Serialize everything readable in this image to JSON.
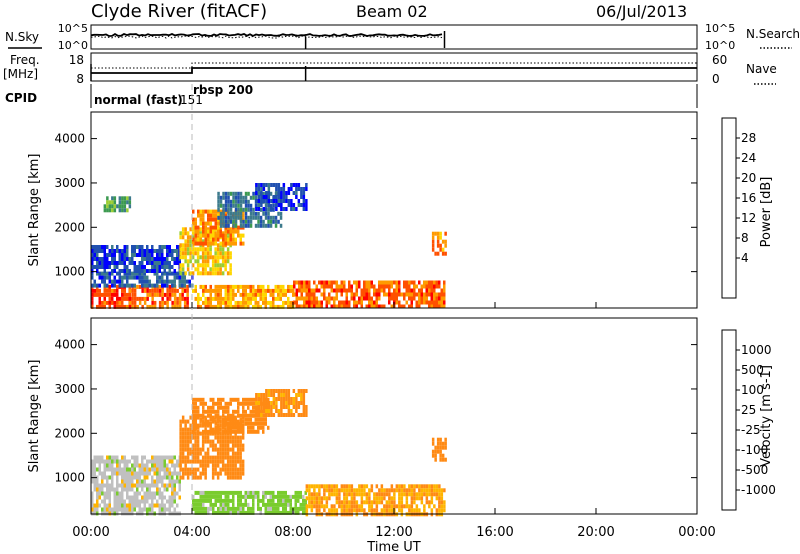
{
  "header": {
    "station": "Clyde River (fitACF)",
    "beam": "Beam 02",
    "date": "06/Jul/2013"
  },
  "top_panels": {
    "nsky_label": "N.Sky",
    "nsky_ticks": [
      "10^5",
      "10^0"
    ],
    "nsearch_label": "N.Search",
    "freq_label_1": "Freq.",
    "freq_label_2": "[MHz]",
    "freq_ticks": [
      "18",
      "8"
    ],
    "nave_label": "Nave",
    "nave_ticks": [
      "60",
      "0"
    ],
    "cpid_label": "CPID",
    "cpid_modes": [
      {
        "label": "normal (fast)",
        "id": "151",
        "start_hour": 0
      },
      {
        "label": "rbsp",
        "id": "200",
        "start_hour": 4
      }
    ]
  },
  "colors": {
    "power_scale": [
      "#0000ff",
      "#2050b0",
      "#3c7a8c",
      "#3c9a50",
      "#9acd32",
      "#ffd700",
      "#ff9a00",
      "#ff5000",
      "#ff0000"
    ],
    "velocity_scale": [
      "#ff0000",
      "#ff4a00",
      "#ff8a14",
      "#ffb400",
      "#c0c0c0",
      "#7acc2e",
      "#3c9a50",
      "#2a6ca4",
      "#1434c8"
    ]
  },
  "chart_data": [
    {
      "type": "heatmap",
      "panel": "power",
      "ylabel": "Slant Range [km]",
      "yticks": [
        1000,
        2000,
        3000,
        4000
      ],
      "ylim": [
        180,
        4600
      ],
      "xlim": [
        0,
        24
      ],
      "colorbar_label": "Power [dB]",
      "colorbar_ticks": [
        "28",
        "24",
        "20",
        "16",
        "12",
        "8",
        "4"
      ],
      "clim": [
        0,
        32
      ],
      "regions": [
        {
          "x": [
            0.0,
            1.5
          ],
          "y": [
            200,
            700
          ],
          "value": 28
        },
        {
          "x": [
            1.5,
            3.8
          ],
          "y": [
            200,
            700
          ],
          "value": 26
        },
        {
          "x": [
            0.0,
            4.0
          ],
          "y": [
            700,
            1000
          ],
          "value": 6
        },
        {
          "x": [
            0.0,
            3.5
          ],
          "y": [
            1000,
            1600
          ],
          "value": 5
        },
        {
          "x": [
            3.5,
            5.5
          ],
          "y": [
            1000,
            2000
          ],
          "value": 20
        },
        {
          "x": [
            4.0,
            6.0
          ],
          "y": [
            1600,
            2400
          ],
          "value": 24
        },
        {
          "x": [
            5.0,
            7.5
          ],
          "y": [
            2000,
            2800
          ],
          "value": 8
        },
        {
          "x": [
            6.5,
            8.5
          ],
          "y": [
            2400,
            3000
          ],
          "value": 4
        },
        {
          "x": [
            0.5,
            1.5
          ],
          "y": [
            2400,
            2700
          ],
          "value": 12
        },
        {
          "x": [
            4.0,
            8.0
          ],
          "y": [
            200,
            700
          ],
          "value": 22
        },
        {
          "x": [
            8.0,
            14.0
          ],
          "y": [
            200,
            800
          ],
          "value": 26
        },
        {
          "x": [
            13.5,
            14.0
          ],
          "y": [
            1400,
            1900
          ],
          "value": 24
        }
      ]
    },
    {
      "type": "heatmap",
      "panel": "velocity",
      "ylabel": "Slant Range [km]",
      "yticks": [
        1000,
        2000,
        3000,
        4000
      ],
      "ylim": [
        180,
        4600
      ],
      "xlim": [
        0,
        24
      ],
      "colorbar_label": "Velocity [m s-1]",
      "colorbar_ticks": [
        "1000",
        "500",
        "100",
        "25",
        "-25",
        "-100",
        "-500",
        "-1000"
      ],
      "clim": [
        -1200,
        1200
      ],
      "regions": [
        {
          "x": [
            0.0,
            3.5
          ],
          "y": [
            200,
            1500
          ],
          "value": 0
        },
        {
          "x": [
            3.5,
            6.0
          ],
          "y": [
            1000,
            2400
          ],
          "value": -150
        },
        {
          "x": [
            4.0,
            7.0
          ],
          "y": [
            2000,
            2800
          ],
          "value": -150
        },
        {
          "x": [
            6.5,
            8.5
          ],
          "y": [
            2400,
            3000
          ],
          "value": -120
        },
        {
          "x": [
            4.0,
            8.5
          ],
          "y": [
            200,
            700
          ],
          "value": 50
        },
        {
          "x": [
            8.5,
            14.0
          ],
          "y": [
            200,
            850
          ],
          "value": -100
        },
        {
          "x": [
            13.5,
            14.0
          ],
          "y": [
            1400,
            1900
          ],
          "value": -150
        }
      ]
    }
  ],
  "xaxis": {
    "xlabel": "Time UT",
    "xticks": [
      "00:00",
      "04:00",
      "08:00",
      "12:00",
      "16:00",
      "20:00",
      "00:00"
    ],
    "xlim": [
      0,
      24
    ]
  }
}
